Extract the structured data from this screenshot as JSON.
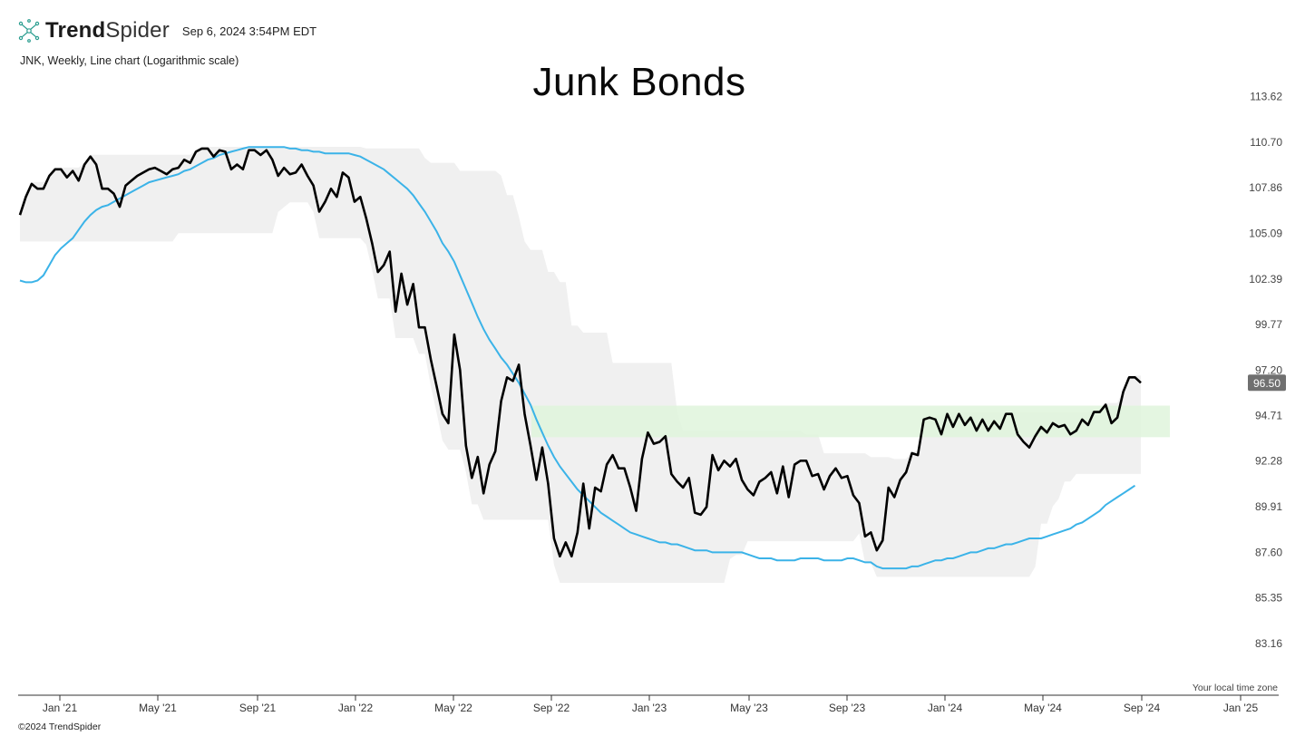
{
  "header": {
    "brand_bold": "Trend",
    "brand_light": "Spider",
    "timestamp": "Sep 6, 2024 3:54PM EDT"
  },
  "subtitle": "JNK, Weekly, Line chart (Logarithmic scale)",
  "footer": {
    "copyright": "©2024 TrendSpider",
    "timezone_label": "Your local time zone"
  },
  "colors": {
    "price_line": "#000000",
    "moving_average": "#3bb3e8",
    "channel_fill": "#f0f0f0",
    "support_zone": "#dff5dc",
    "last_price_badge": "#707070"
  },
  "chart_data": {
    "type": "line",
    "title": "Junk Bonds",
    "scale": "log",
    "ylim": [
      82.3,
      114.6
    ],
    "y_ticks": [
      83.16,
      85.35,
      87.6,
      89.91,
      92.28,
      94.71,
      97.2,
      99.77,
      102.39,
      105.09,
      107.86,
      110.7,
      113.62
    ],
    "x_ticks": [
      "Jan '21",
      "May '21",
      "Sep '21",
      "Jan '22",
      "May '22",
      "Sep '22",
      "Jan '23",
      "May '23",
      "Sep '23",
      "Jan '24",
      "May '24",
      "Sep '24",
      "Jan '25"
    ],
    "last_price": 96.5,
    "series": [
      {
        "kind": "price",
        "values": [
          106.2,
          107.3,
          108.1,
          107.8,
          107.8,
          108.6,
          109.0,
          109.0,
          108.5,
          108.9,
          108.3,
          109.3,
          109.8,
          109.3,
          107.8,
          107.8,
          107.5,
          106.7,
          108.0,
          108.3,
          108.6,
          108.8,
          109.0,
          109.1,
          108.9,
          108.7,
          109.0,
          109.1,
          109.6,
          109.4,
          110.1,
          110.3,
          110.3,
          109.8,
          110.2,
          110.1,
          109.0,
          109.3,
          109.0,
          110.2,
          110.2,
          109.9,
          110.2,
          109.6,
          108.6,
          109.1,
          108.7,
          108.8,
          109.3,
          108.6,
          108.0,
          106.4,
          107.0,
          107.8,
          107.3,
          108.8,
          108.5,
          107.0,
          107.3,
          106.0,
          104.5,
          102.8,
          103.2,
          104.0,
          100.5,
          102.7,
          100.9,
          102.1,
          99.6,
          99.6,
          97.8,
          96.3,
          94.8,
          94.3,
          99.2,
          97.2,
          93.1,
          91.4,
          92.5,
          90.6,
          92.1,
          92.8,
          95.5,
          96.8,
          96.6,
          97.5,
          94.8,
          93.1,
          91.3,
          93.0,
          91.1,
          88.3,
          87.4,
          88.1,
          87.4,
          88.6,
          91.1,
          88.8,
          90.9,
          90.7,
          92.1,
          92.6,
          91.9,
          91.9,
          90.9,
          89.7,
          92.4,
          93.8,
          93.2,
          93.3,
          93.6,
          91.6,
          91.2,
          90.9,
          91.4,
          89.6,
          89.5,
          89.9,
          92.6,
          91.8,
          92.3,
          92.0,
          92.4,
          91.3,
          90.8,
          90.5,
          91.2,
          91.4,
          91.7,
          90.6,
          92.0,
          90.4,
          92.1,
          92.3,
          92.3,
          91.5,
          91.6,
          90.8,
          91.5,
          91.9,
          91.4,
          91.5,
          90.5,
          90.1,
          88.4,
          88.6,
          87.7,
          88.2,
          90.9,
          90.4,
          91.3,
          91.7,
          92.7,
          92.6,
          94.5,
          94.6,
          94.5,
          93.7,
          94.8,
          94.1,
          94.8,
          94.2,
          94.6,
          93.9,
          94.5,
          93.9,
          94.4,
          94.0,
          94.8,
          94.8,
          93.7,
          93.3,
          93.0,
          93.6,
          94.1,
          93.8,
          94.3,
          94.1,
          94.2,
          93.7,
          93.9,
          94.5,
          94.2,
          94.9,
          94.9,
          95.3,
          94.3,
          94.6,
          96.0,
          96.8,
          96.8,
          96.5
        ]
      },
      {
        "kind": "moving-average",
        "values": [
          102.3,
          102.2,
          102.2,
          102.3,
          102.6,
          103.2,
          103.8,
          104.2,
          104.5,
          104.8,
          105.3,
          105.8,
          106.2,
          106.5,
          106.7,
          106.8,
          107.0,
          107.2,
          107.4,
          107.6,
          107.8,
          108.0,
          108.2,
          108.3,
          108.4,
          108.5,
          108.6,
          108.7,
          108.9,
          109.0,
          109.2,
          109.4,
          109.6,
          109.7,
          109.9,
          110.0,
          110.1,
          110.2,
          110.3,
          110.4,
          110.4,
          110.4,
          110.4,
          110.4,
          110.4,
          110.4,
          110.3,
          110.3,
          110.2,
          110.2,
          110.1,
          110.1,
          110.0,
          110.0,
          110.0,
          110.0,
          110.0,
          109.9,
          109.8,
          109.6,
          109.4,
          109.2,
          109.0,
          108.7,
          108.4,
          108.1,
          107.8,
          107.4,
          106.9,
          106.4,
          105.8,
          105.2,
          104.5,
          104.0,
          103.4,
          102.6,
          101.8,
          101.0,
          100.2,
          99.5,
          98.9,
          98.4,
          97.9,
          97.5,
          97.0,
          96.5,
          95.9,
          95.3,
          94.5,
          93.8,
          93.1,
          92.5,
          92.0,
          91.6,
          91.2,
          90.8,
          90.5,
          90.2,
          89.9,
          89.6,
          89.4,
          89.2,
          89.0,
          88.8,
          88.6,
          88.5,
          88.4,
          88.3,
          88.2,
          88.1,
          88.1,
          88.0,
          88.0,
          87.9,
          87.8,
          87.7,
          87.7,
          87.7,
          87.6,
          87.6,
          87.6,
          87.6,
          87.6,
          87.6,
          87.5,
          87.4,
          87.3,
          87.3,
          87.3,
          87.2,
          87.2,
          87.2,
          87.2,
          87.3,
          87.3,
          87.3,
          87.3,
          87.2,
          87.2,
          87.2,
          87.2,
          87.3,
          87.3,
          87.2,
          87.1,
          87.1,
          86.9,
          86.8,
          86.8,
          86.8,
          86.8,
          86.8,
          86.9,
          86.9,
          87.0,
          87.1,
          87.2,
          87.2,
          87.3,
          87.3,
          87.4,
          87.5,
          87.6,
          87.6,
          87.7,
          87.8,
          87.8,
          87.9,
          88.0,
          88.0,
          88.1,
          88.2,
          88.3,
          88.3,
          88.3,
          88.4,
          88.5,
          88.6,
          88.7,
          88.8,
          89.0,
          89.1,
          89.3,
          89.5,
          89.7,
          90.0,
          90.2,
          90.4,
          90.6,
          90.8,
          91.0
        ]
      }
    ]
  }
}
